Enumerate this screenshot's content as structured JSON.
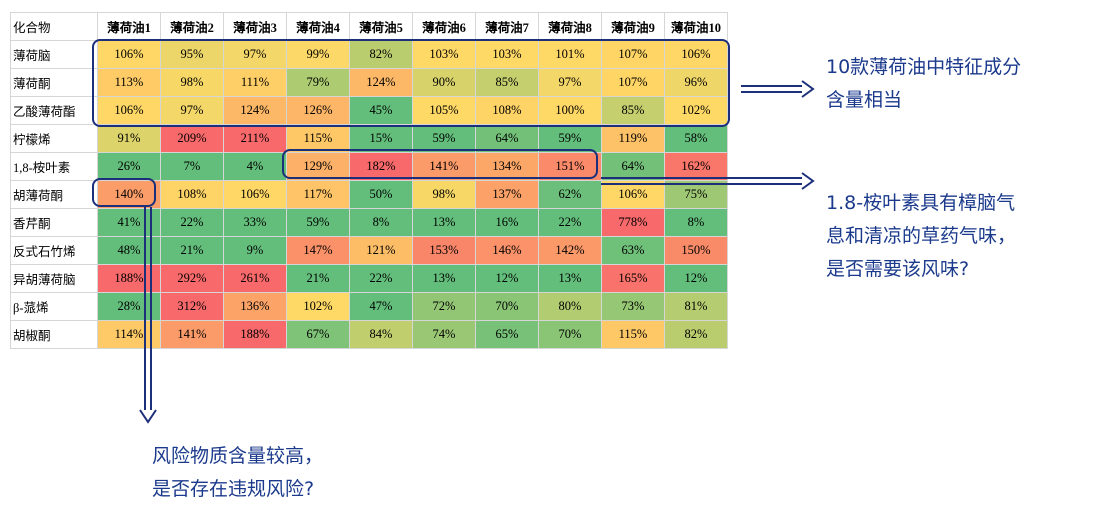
{
  "chart_data": {
    "type": "heatmap",
    "corner_label": "化合物",
    "columns": [
      "薄荷油1",
      "薄荷油2",
      "薄荷油3",
      "薄荷油4",
      "薄荷油5",
      "薄荷油6",
      "薄荷油7",
      "薄荷油8",
      "薄荷油9",
      "薄荷油10"
    ],
    "rows": [
      {
        "label": "薄荷脑",
        "values": [
          "106%",
          "95%",
          "97%",
          "99%",
          "82%",
          "103%",
          "103%",
          "101%",
          "107%",
          "106%"
        ]
      },
      {
        "label": "薄荷酮",
        "values": [
          "113%",
          "98%",
          "111%",
          "79%",
          "124%",
          "90%",
          "85%",
          "97%",
          "107%",
          "96%"
        ]
      },
      {
        "label": "乙酸薄荷酯",
        "values": [
          "106%",
          "97%",
          "124%",
          "126%",
          "45%",
          "105%",
          "108%",
          "100%",
          "85%",
          "102%"
        ]
      },
      {
        "label": "柠檬烯",
        "values": [
          "91%",
          "209%",
          "211%",
          "115%",
          "15%",
          "59%",
          "64%",
          "59%",
          "119%",
          "58%"
        ]
      },
      {
        "label": "1,8-桉叶素",
        "values": [
          "26%",
          "7%",
          "4%",
          "129%",
          "182%",
          "141%",
          "134%",
          "151%",
          "64%",
          "162%"
        ]
      },
      {
        "label": "胡薄荷酮",
        "values": [
          "140%",
          "108%",
          "106%",
          "117%",
          "50%",
          "98%",
          "137%",
          "62%",
          "106%",
          "75%"
        ]
      },
      {
        "label": "香芹酮",
        "values": [
          "41%",
          "22%",
          "33%",
          "59%",
          "8%",
          "13%",
          "16%",
          "22%",
          "778%",
          "8%"
        ]
      },
      {
        "label": "反式石竹烯",
        "values": [
          "48%",
          "21%",
          "9%",
          "147%",
          "121%",
          "153%",
          "146%",
          "142%",
          "63%",
          "150%"
        ]
      },
      {
        "label": "异胡薄荷脑",
        "values": [
          "188%",
          "292%",
          "261%",
          "21%",
          "22%",
          "13%",
          "12%",
          "13%",
          "165%",
          "12%"
        ]
      },
      {
        "label": "β-蒎烯",
        "values": [
          "28%",
          "312%",
          "136%",
          "102%",
          "47%",
          "72%",
          "70%",
          "80%",
          "73%",
          "81%"
        ]
      },
      {
        "label": "胡椒酮",
        "values": [
          "114%",
          "141%",
          "188%",
          "67%",
          "84%",
          "74%",
          "65%",
          "70%",
          "115%",
          "82%"
        ]
      }
    ]
  },
  "colors": {
    "green": "#63be7b",
    "yellow": "#ffd966",
    "red": "#f8696b",
    "callout_text": "#1b3a8c",
    "box": "#1c2f7a"
  },
  "annotations": {
    "callout1": [
      "10款薄荷油中特征成分",
      "含量相当"
    ],
    "callout2": [
      "1.8-桉叶素具有樟脑气",
      "息和清凉的草药气味，",
      "是否需要该风味?"
    ],
    "callout3": [
      "风险物质含量较高，",
      "是否存在违规风险?"
    ]
  }
}
